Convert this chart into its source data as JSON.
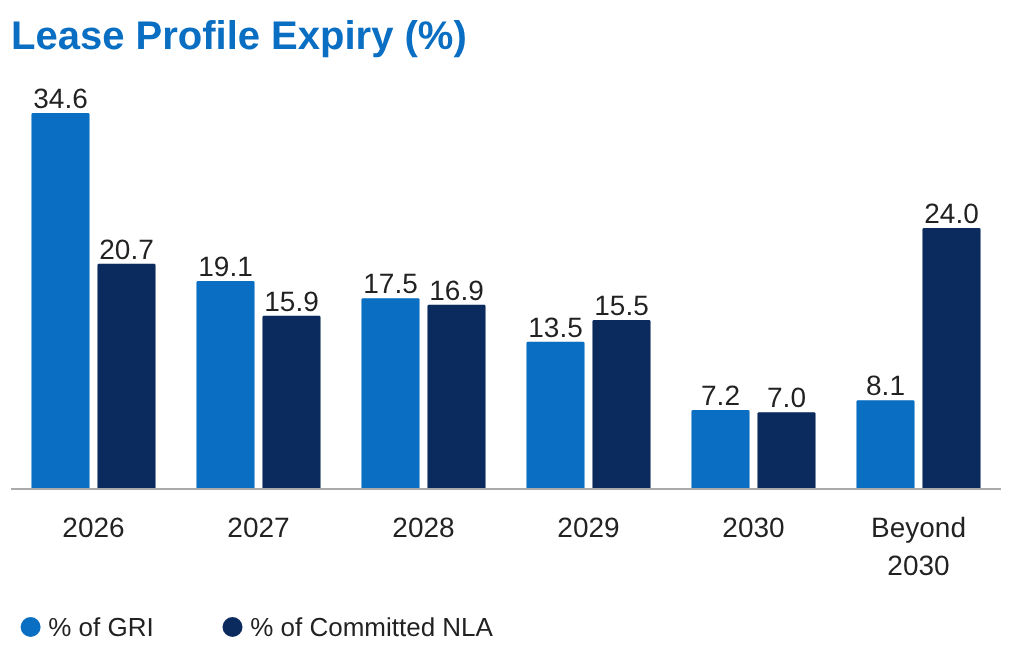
{
  "chart_data": {
    "type": "bar",
    "title": "Lease Profile Expiry (%)",
    "categories": [
      "2026",
      "2027",
      "2028",
      "2029",
      "2030",
      "Beyond\n2030"
    ],
    "series": [
      {
        "name": "% of GRI",
        "color": "#0a6fc2",
        "values": [
          34.6,
          19.1,
          17.5,
          13.5,
          7.2,
          8.1
        ],
        "value_labels": [
          "34.6",
          "19.1",
          "17.5",
          "13.5",
          "7.2",
          "8.1"
        ]
      },
      {
        "name": "% of Committed NLA",
        "color": "#0b2a5e",
        "values": [
          20.7,
          15.9,
          16.9,
          15.5,
          7.0,
          24.0
        ],
        "value_labels": [
          "20.7",
          "15.9",
          "16.9",
          "15.5",
          "7.0",
          "24.0"
        ]
      }
    ],
    "legend": "bottom left",
    "grid": false,
    "marker": "circle"
  }
}
